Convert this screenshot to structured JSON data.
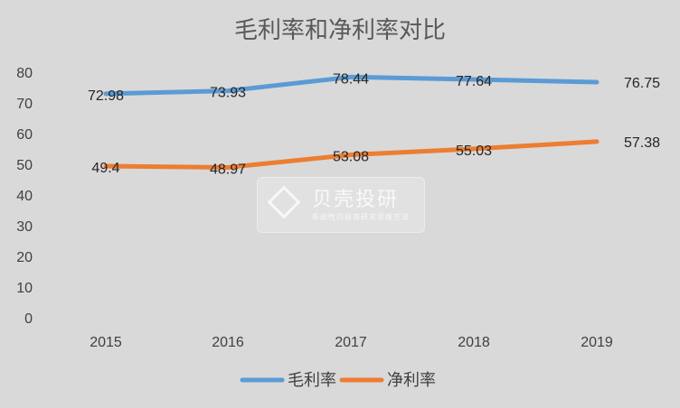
{
  "chart_data": {
    "type": "line",
    "title": "毛利率和净利率对比",
    "categories": [
      "2015",
      "2016",
      "2017",
      "2018",
      "2019"
    ],
    "ylim": [
      0,
      80
    ],
    "yticks": [
      0,
      10,
      20,
      30,
      40,
      50,
      60,
      70,
      80
    ],
    "grid": false,
    "legend": "bottom",
    "series": [
      {
        "name": "毛利率",
        "values": [
          72.98,
          73.93,
          78.44,
          77.64,
          76.75
        ],
        "labels": [
          "72.98",
          "73.93",
          "78.44",
          "77.64",
          "76.75"
        ],
        "color": "#5b9bd5"
      },
      {
        "name": "净利率",
        "values": [
          49.4,
          48.97,
          53.08,
          55.03,
          57.38
        ],
        "labels": [
          "49.4",
          "48.97",
          "53.08",
          "55.03",
          "57.38"
        ],
        "color": "#ed7d31"
      }
    ]
  },
  "watermark": {
    "title": "贝壳投研",
    "subtitle": "系统性的投资研究思维方法"
  }
}
